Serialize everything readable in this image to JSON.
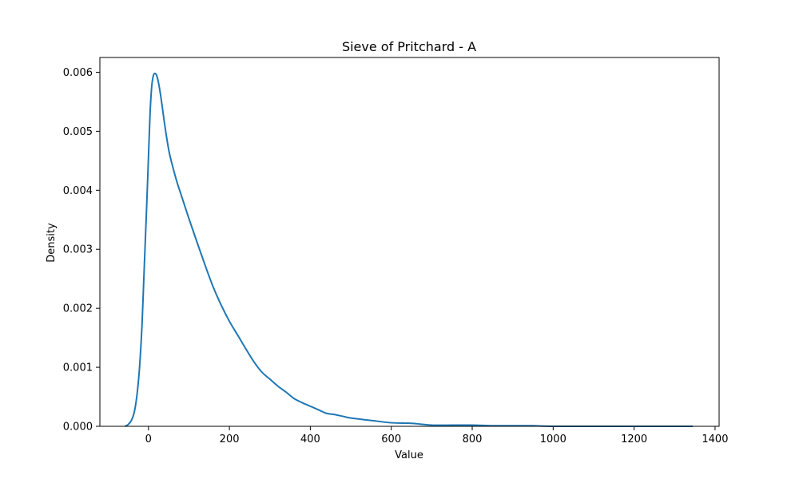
{
  "chart_data": {
    "type": "line",
    "title": "Sieve of Pritchard - A",
    "xlabel": "Value",
    "ylabel": "Density",
    "xlim": [
      -120,
      1410
    ],
    "ylim": [
      0,
      0.00625
    ],
    "xticks": [
      0,
      200,
      400,
      600,
      800,
      1000,
      1200,
      1400
    ],
    "yticks": [
      0.0,
      0.001,
      0.002,
      0.003,
      0.004,
      0.005,
      0.006
    ],
    "xtick_labels": [
      "0",
      "200",
      "400",
      "600",
      "800",
      "1000",
      "1200",
      "1400"
    ],
    "ytick_labels": [
      "0.000",
      "0.001",
      "0.002",
      "0.003",
      "0.004",
      "0.005",
      "0.006"
    ],
    "grid": false,
    "legend": "none",
    "series": [
      {
        "color": "#1f77b4",
        "x": [
          -58,
          -50,
          -42,
          -35,
          -28,
          -22,
          -16,
          -12,
          -8,
          -4,
          0,
          4,
          8,
          12,
          16,
          20,
          24,
          28,
          32,
          36,
          40,
          46,
          52,
          60,
          70,
          80,
          100,
          120,
          140,
          160,
          180,
          200,
          220,
          240,
          260,
          280,
          300,
          320,
          340,
          360,
          380,
          400,
          420,
          440,
          460,
          480,
          500,
          550,
          600,
          650,
          700,
          750,
          800,
          850,
          900,
          950,
          1000,
          1100,
          1200,
          1300,
          1345
        ],
        "y": [
          0.0,
          3e-05,
          0.0001,
          0.00024,
          0.00055,
          0.001,
          0.0017,
          0.0024,
          0.0031,
          0.0038,
          0.00455,
          0.0053,
          0.00575,
          0.00594,
          0.00598,
          0.00595,
          0.00585,
          0.0057,
          0.00552,
          0.00532,
          0.00512,
          0.00485,
          0.00462,
          0.0044,
          0.00415,
          0.00394,
          0.00352,
          0.00312,
          0.00273,
          0.00236,
          0.00205,
          0.00178,
          0.00155,
          0.00132,
          0.0011,
          0.00092,
          0.0008,
          0.00068,
          0.00058,
          0.00047,
          0.0004,
          0.00034,
          0.00028,
          0.00022,
          0.0002,
          0.00017,
          0.00014,
          0.0001,
          6e-05,
          5e-05,
          2e-05,
          2e-05,
          2e-05,
          1e-05,
          1e-05,
          1e-05,
          0.0,
          0.0,
          0.0,
          0.0,
          0.0
        ]
      }
    ]
  }
}
